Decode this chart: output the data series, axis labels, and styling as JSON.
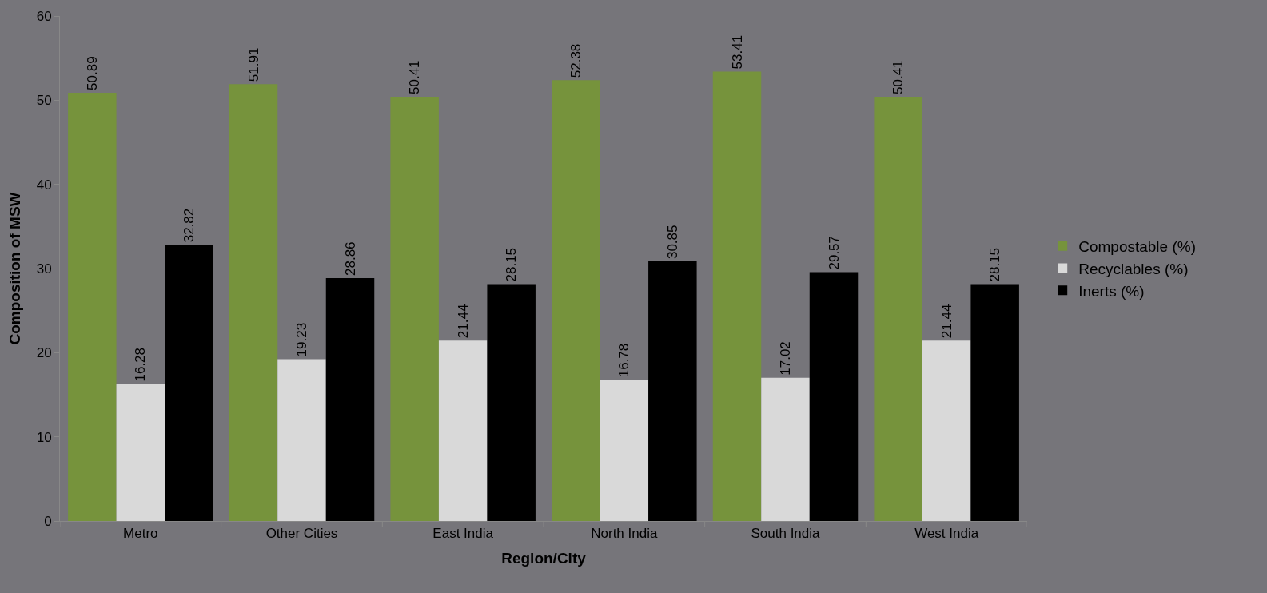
{
  "chart_data": {
    "type": "bar",
    "xlabel": "Region/City",
    "ylabel": "Composition of MSW",
    "categories": [
      "Metro",
      "Other Cities",
      "East India",
      "North India",
      "South India",
      "West India"
    ],
    "series": [
      {
        "name": "Compostable (%)",
        "color": "#76933c",
        "values": [
          50.89,
          51.91,
          50.41,
          52.38,
          53.41,
          50.41
        ]
      },
      {
        "name": "Recyclables (%)",
        "color": "#d9d9d9",
        "values": [
          16.28,
          19.23,
          21.44,
          16.78,
          17.02,
          21.44
        ]
      },
      {
        "name": "Inerts (%)",
        "color": "#000000",
        "values": [
          32.82,
          28.86,
          28.15,
          30.85,
          29.57,
          28.15
        ]
      }
    ],
    "ylim": [
      0,
      60
    ],
    "yticks": [
      0,
      10,
      20,
      30,
      40,
      50,
      60
    ],
    "grid": false,
    "legend": "right",
    "data_labels": true
  }
}
